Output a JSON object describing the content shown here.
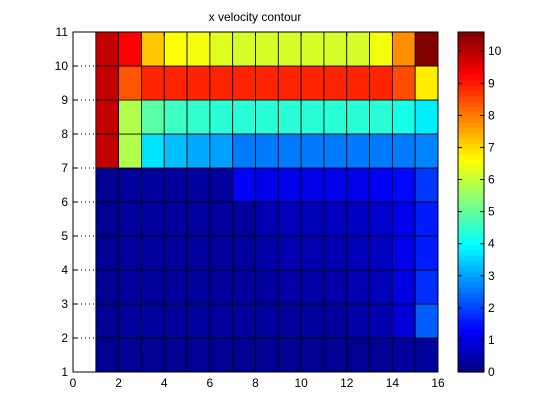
{
  "chart_data": {
    "type": "heatmap",
    "title": "x velocity contour",
    "xlabel": "",
    "ylabel": "",
    "xlim": [
      0,
      16
    ],
    "ylim": [
      1,
      11
    ],
    "x_ticks": [
      0,
      2,
      4,
      6,
      8,
      10,
      12,
      14,
      16
    ],
    "y_ticks": [
      1,
      2,
      3,
      4,
      5,
      6,
      7,
      8,
      9,
      10,
      11
    ],
    "x_edges": [
      1,
      2,
      3,
      4,
      5,
      6,
      7,
      8,
      9,
      10,
      11,
      12,
      13,
      14,
      15,
      16
    ],
    "y_edges": [
      1,
      2,
      3,
      4,
      5,
      6,
      7,
      8,
      9,
      10,
      11
    ],
    "colormap": "jet",
    "clim": [
      0,
      10.6
    ],
    "colorbar_ticks": [
      0,
      1,
      2,
      3,
      4,
      5,
      6,
      7,
      8,
      9,
      10
    ],
    "grid": false,
    "values": [
      [
        0.2,
        0.2,
        0.2,
        0.2,
        0.2,
        0.2,
        0.2,
        0.2,
        0.2,
        0.2,
        0.2,
        0.2,
        0.2,
        0.3,
        0.3
      ],
      [
        0.2,
        0.3,
        0.3,
        0.3,
        0.3,
        0.3,
        0.3,
        0.3,
        0.3,
        0.3,
        0.3,
        0.4,
        0.5,
        0.9,
        2.3
      ],
      [
        0.2,
        0.3,
        0.3,
        0.3,
        0.3,
        0.3,
        0.3,
        0.3,
        0.4,
        0.4,
        0.4,
        0.5,
        0.6,
        1.0,
        1.8
      ],
      [
        0.2,
        0.3,
        0.3,
        0.3,
        0.3,
        0.3,
        0.3,
        0.4,
        0.5,
        0.5,
        0.5,
        0.6,
        0.7,
        1.1,
        1.6
      ],
      [
        0.2,
        0.3,
        0.3,
        0.3,
        0.3,
        0.3,
        0.3,
        0.5,
        0.6,
        0.6,
        0.7,
        0.7,
        0.8,
        1.1,
        1.6
      ],
      [
        0.2,
        0.3,
        0.3,
        0.3,
        0.3,
        0.3,
        1.3,
        1.1,
        1.1,
        1.1,
        1.1,
        1.1,
        1.2,
        1.4,
        1.9
      ],
      [
        9.9,
        5.8,
        3.7,
        3.3,
        3.1,
        3.0,
        2.6,
        2.6,
        2.6,
        2.6,
        2.6,
        2.6,
        2.6,
        2.6,
        2.7
      ],
      [
        9.9,
        5.8,
        4.9,
        4.6,
        4.5,
        4.4,
        4.4,
        4.4,
        4.4,
        4.4,
        4.4,
        4.4,
        4.4,
        4.2,
        3.8
      ],
      [
        9.9,
        8.4,
        8.9,
        8.9,
        8.9,
        8.9,
        8.9,
        8.9,
        8.9,
        8.9,
        8.9,
        8.9,
        8.9,
        8.5,
        6.8
      ],
      [
        9.9,
        9.3,
        7.2,
        6.6,
        6.5,
        6.3,
        6.2,
        6.2,
        6.2,
        6.2,
        6.2,
        6.2,
        6.5,
        7.8,
        10.6
      ]
    ]
  }
}
